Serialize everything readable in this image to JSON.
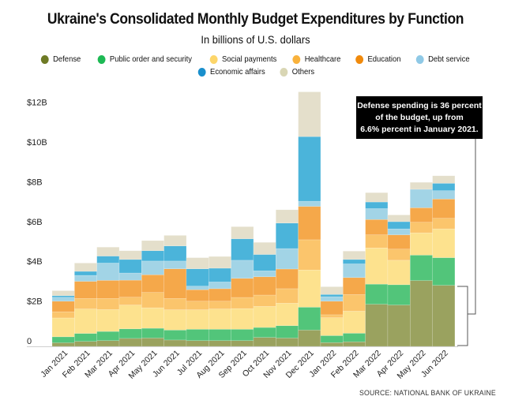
{
  "chart_data": {
    "type": "bar",
    "stacked": true,
    "title": "Ukraine's Consolidated Monthly Budget Expenditures by Function",
    "subtitle": "In billions of U.S. dollars",
    "xlabel": "",
    "ylabel": "",
    "ylim": [
      0,
      12
    ],
    "yticks": [
      0,
      2,
      4,
      6,
      8,
      10,
      12
    ],
    "ytick_labels": [
      "0",
      "$2B",
      "$4B",
      "$6B",
      "$8B",
      "$10B",
      "$12B"
    ],
    "grid": false,
    "legend_position": "top",
    "categories": [
      "Jan 2021",
      "Feb 2021",
      "Mar 2021",
      "Apr 2021",
      "May 2021",
      "Jun 2021",
      "Jul 2021",
      "Aug 2021",
      "Sep 2021",
      "Oct 2021",
      "Nov 2021",
      "Dec 2021",
      "Jan 2022",
      "Feb 2022",
      "Mar 2022",
      "Apr 2022",
      "May 2022",
      "Jun 2022"
    ],
    "series": [
      {
        "name": "Defense",
        "color": "#9aa25f",
        "legend_color": "#6e7a25",
        "values": [
          0.18,
          0.25,
          0.29,
          0.4,
          0.42,
          0.32,
          0.29,
          0.29,
          0.29,
          0.45,
          0.42,
          0.82,
          0.19,
          0.23,
          2.12,
          2.08,
          3.31,
          3.07
        ]
      },
      {
        "name": "Public order and security",
        "color": "#52c57a",
        "legend_color": "#1db954",
        "values": [
          0.3,
          0.4,
          0.46,
          0.48,
          0.49,
          0.5,
          0.57,
          0.57,
          0.57,
          0.5,
          0.62,
          1.15,
          0.35,
          0.43,
          1.01,
          1.02,
          1.28,
          1.39
        ]
      },
      {
        "name": "Social payments",
        "color": "#fde28e",
        "legend_color": "#fdd66a",
        "values": [
          0.95,
          1.23,
          1.1,
          1.2,
          1.03,
          1.02,
          0.98,
          1.02,
          1.04,
          1.06,
          1.13,
          1.87,
          0.9,
          1.11,
          1.82,
          1.23,
          1.12,
          1.45
        ]
      },
      {
        "name": "Healthcare",
        "color": "#fbc56c",
        "legend_color": "#f9b23c",
        "values": [
          0.31,
          0.53,
          0.56,
          0.39,
          0.77,
          0.57,
          0.43,
          0.39,
          0.56,
          0.57,
          0.73,
          1.52,
          0.15,
          0.84,
          0.66,
          0.56,
          0.53,
          0.53
        ]
      },
      {
        "name": "Education",
        "color": "#f5a84a",
        "legend_color": "#f08a0c",
        "values": [
          0.53,
          0.86,
          0.91,
          0.86,
          0.89,
          1.49,
          0.58,
          0.63,
          0.96,
          0.92,
          0.99,
          1.68,
          0.68,
          0.85,
          0.77,
          0.72,
          0.73,
          0.97
        ]
      },
      {
        "name": "Debt service",
        "color": "#a2d4e6",
        "legend_color": "#8fc9e6",
        "values": [
          0.2,
          0.3,
          0.87,
          0.36,
          0.69,
          0.39,
          0.18,
          0.34,
          0.91,
          0.3,
          1.03,
          0.26,
          0.23,
          0.69,
          0.55,
          0.3,
          0.93,
          0.42
        ]
      },
      {
        "name": "Economic affairs",
        "color": "#4bb4da",
        "legend_color": "#1a8fcc",
        "values": [
          0.08,
          0.2,
          0.35,
          0.68,
          0.52,
          0.76,
          0.87,
          0.69,
          1.08,
          0.82,
          1.28,
          3.25,
          0.11,
          0.22,
          0.33,
          0.36,
          0.0,
          0.37
        ]
      },
      {
        "name": "Others",
        "color": "#e4dfcb",
        "legend_color": "#d9d6b4",
        "values": [
          0.25,
          0.42,
          0.45,
          0.44,
          0.51,
          0.53,
          0.56,
          0.59,
          0.61,
          0.61,
          0.67,
          2.25,
          0.39,
          0.42,
          0.47,
          0.34,
          0.35,
          0.38
        ]
      }
    ],
    "annotations": [
      {
        "text_parts": [
          "Defense spending is ",
          "36 percent",
          " of the budget, up from ",
          "6.6% percent",
          " in January 2021."
        ],
        "target": "Defense Jun 2022 vs Jan 2021"
      }
    ],
    "source": "SOURCE: NATIONAL BANK OF UKRAINE"
  }
}
